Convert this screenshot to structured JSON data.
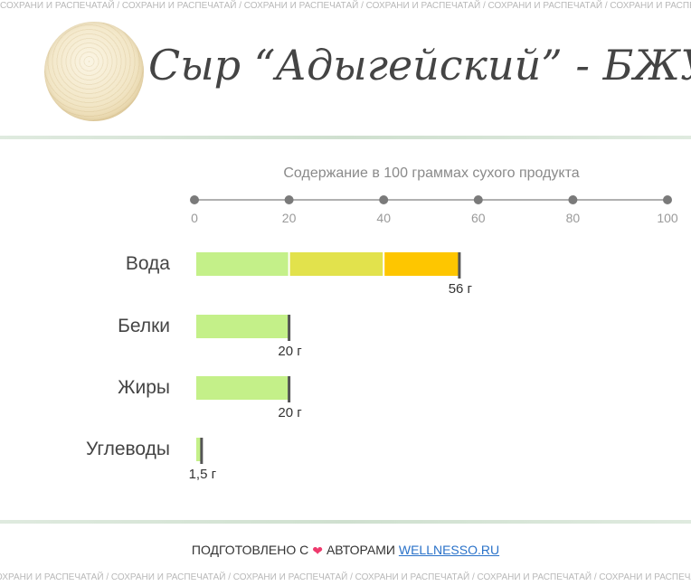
{
  "watermark": {
    "text": "СОХРАНИ И РАСПЕЧАТАЙ",
    "separator": " / "
  },
  "header": {
    "title": "Сыр “Адыгейский” - БЖУ"
  },
  "chart_data": {
    "type": "bar",
    "orientation": "horizontal",
    "title": "Содержание в 100 граммах сухого продукта",
    "xlim": [
      0,
      100
    ],
    "x_ticks": [
      0,
      20,
      40,
      60,
      80,
      100
    ],
    "categories": [
      "Вода",
      "Белки",
      "Жиры",
      "Углеводы"
    ],
    "values": [
      56,
      20,
      20,
      1.5
    ],
    "value_labels": [
      "56 г",
      "20 г",
      "20 г",
      "1,5 г"
    ],
    "segment_bounds": [
      20,
      40
    ],
    "segment_colors": [
      "#c4f089",
      "#e2e24c",
      "#fec600"
    ],
    "end_marker_color": "#555555",
    "axis_color": "#b0b0b0",
    "tick_dot_color": "#7a7a7a"
  },
  "footer": {
    "prefix": "ПОДГОТОВЛЕНО С",
    "heart": "❤",
    "middle": "АВТОРАМИ",
    "link": "WELLNESSO.RU"
  }
}
